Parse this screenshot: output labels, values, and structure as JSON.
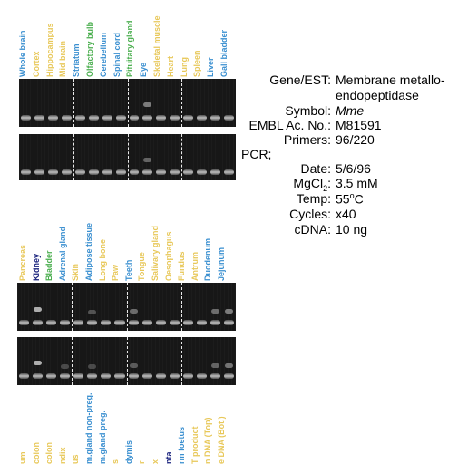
{
  "panel_top": {
    "lanes": [
      {
        "label": "Whole brain",
        "color": "#3a8fd0"
      },
      {
        "label": "Cortex",
        "color": "#e8c85a"
      },
      {
        "label": "Hippocampus",
        "color": "#e8c85a"
      },
      {
        "label": "Mid brain",
        "color": "#e8c85a"
      },
      {
        "label": "Striatum",
        "color": "#3a8fd0"
      },
      {
        "label": "Olfactory bulb",
        "color": "#4caf50"
      },
      {
        "label": "Cerebellum",
        "color": "#3a8fd0"
      },
      {
        "label": "Spinal cord",
        "color": "#3a8fd0"
      },
      {
        "label": "Pituitary gland",
        "color": "#4caf50"
      },
      {
        "label": "Eye",
        "color": "#3a8fd0"
      },
      {
        "label": "Skeletal muscle",
        "color": "#e8c85a"
      },
      {
        "label": "Heart",
        "color": "#e8c85a"
      },
      {
        "label": "Lung",
        "color": "#e8c85a"
      },
      {
        "label": "Spleen",
        "color": "#e8c85a"
      },
      {
        "label": "Liver",
        "color": "#3a8fd0"
      },
      {
        "label": "Gall bladder",
        "color": "#3a8fd0"
      }
    ]
  },
  "panel_bottom": {
    "lanes": [
      {
        "label": "Pancreas",
        "color": "#e8c85a"
      },
      {
        "label": "Kidney",
        "color": "#1a237e"
      },
      {
        "label": "Bladder",
        "color": "#4caf50"
      },
      {
        "label": "Adrenal gland",
        "color": "#3a8fd0"
      },
      {
        "label": "Skin",
        "color": "#e8c85a"
      },
      {
        "label": "Adipose tissue",
        "color": "#3a8fd0"
      },
      {
        "label": "Long bone",
        "color": "#e8c85a"
      },
      {
        "label": "Paw",
        "color": "#e8c85a"
      },
      {
        "label": "Teeth",
        "color": "#3a8fd0"
      },
      {
        "label": "Tongue",
        "color": "#e8c85a"
      },
      {
        "label": "Salivary gland",
        "color": "#e8c85a"
      },
      {
        "label": "Oesophagus",
        "color": "#e8c85a"
      },
      {
        "label": "Fundus",
        "color": "#e8c85a"
      },
      {
        "label": "Antrum",
        "color": "#e8c85a"
      },
      {
        "label": "Duodenum",
        "color": "#3a8fd0"
      },
      {
        "label": "Jejunum",
        "color": "#3a8fd0"
      }
    ]
  },
  "panel_cutoff": {
    "lanes": [
      {
        "label": "um",
        "color": "#e8c85a"
      },
      {
        "label": "colon",
        "color": "#e8c85a"
      },
      {
        "label": "colon",
        "color": "#e8c85a"
      },
      {
        "label": "ndix",
        "color": "#e8c85a"
      },
      {
        "label": "us",
        "color": "#e8c85a"
      },
      {
        "label": "m.gland non-preg.",
        "color": "#3a8fd0"
      },
      {
        "label": "m.gland preg.",
        "color": "#3a8fd0"
      },
      {
        "label": "s",
        "color": "#e8c85a"
      },
      {
        "label": "dymis",
        "color": "#3a8fd0"
      },
      {
        "label": "r",
        "color": "#e8c85a"
      },
      {
        "label": "x",
        "color": "#e8c85a"
      },
      {
        "label": "nta",
        "color": "#1a237e"
      },
      {
        "label": "rm foetus",
        "color": "#3a8fd0"
      },
      {
        "label": "T product",
        "color": "#e8c85a"
      },
      {
        "label": "n DNA (Top)",
        "color": "#e8c85a"
      },
      {
        "label": "e DNA (Bot.)",
        "color": "#e8c85a"
      }
    ]
  },
  "info": {
    "gene_key": "Gene/EST:",
    "gene_value_line1": "Membrane metallo-",
    "gene_value_line2": "endopeptidase",
    "symbol_key": "Symbol:",
    "symbol_value": "Mme",
    "embl_key": "EMBL Ac. No.:",
    "embl_value": "M81591",
    "primers_key": "Primers:",
    "primers_value": "96/220",
    "pcr_key": "PCR;",
    "date_key": "Date:",
    "date_value": "5/6/96",
    "mgcl_key_main": "MgCl",
    "mgcl_key_sub": "2",
    "mgcl_key_colon": ":",
    "mgcl_value": "3.5 mM",
    "temp_key": "Temp:",
    "temp_value_main": "55",
    "temp_value_sup": "o",
    "temp_value_unit": "C",
    "cycles_key": "Cycles:",
    "cycles_value": "x40",
    "cdna_key": "cDNA:",
    "cdna_value": "10 ng"
  }
}
